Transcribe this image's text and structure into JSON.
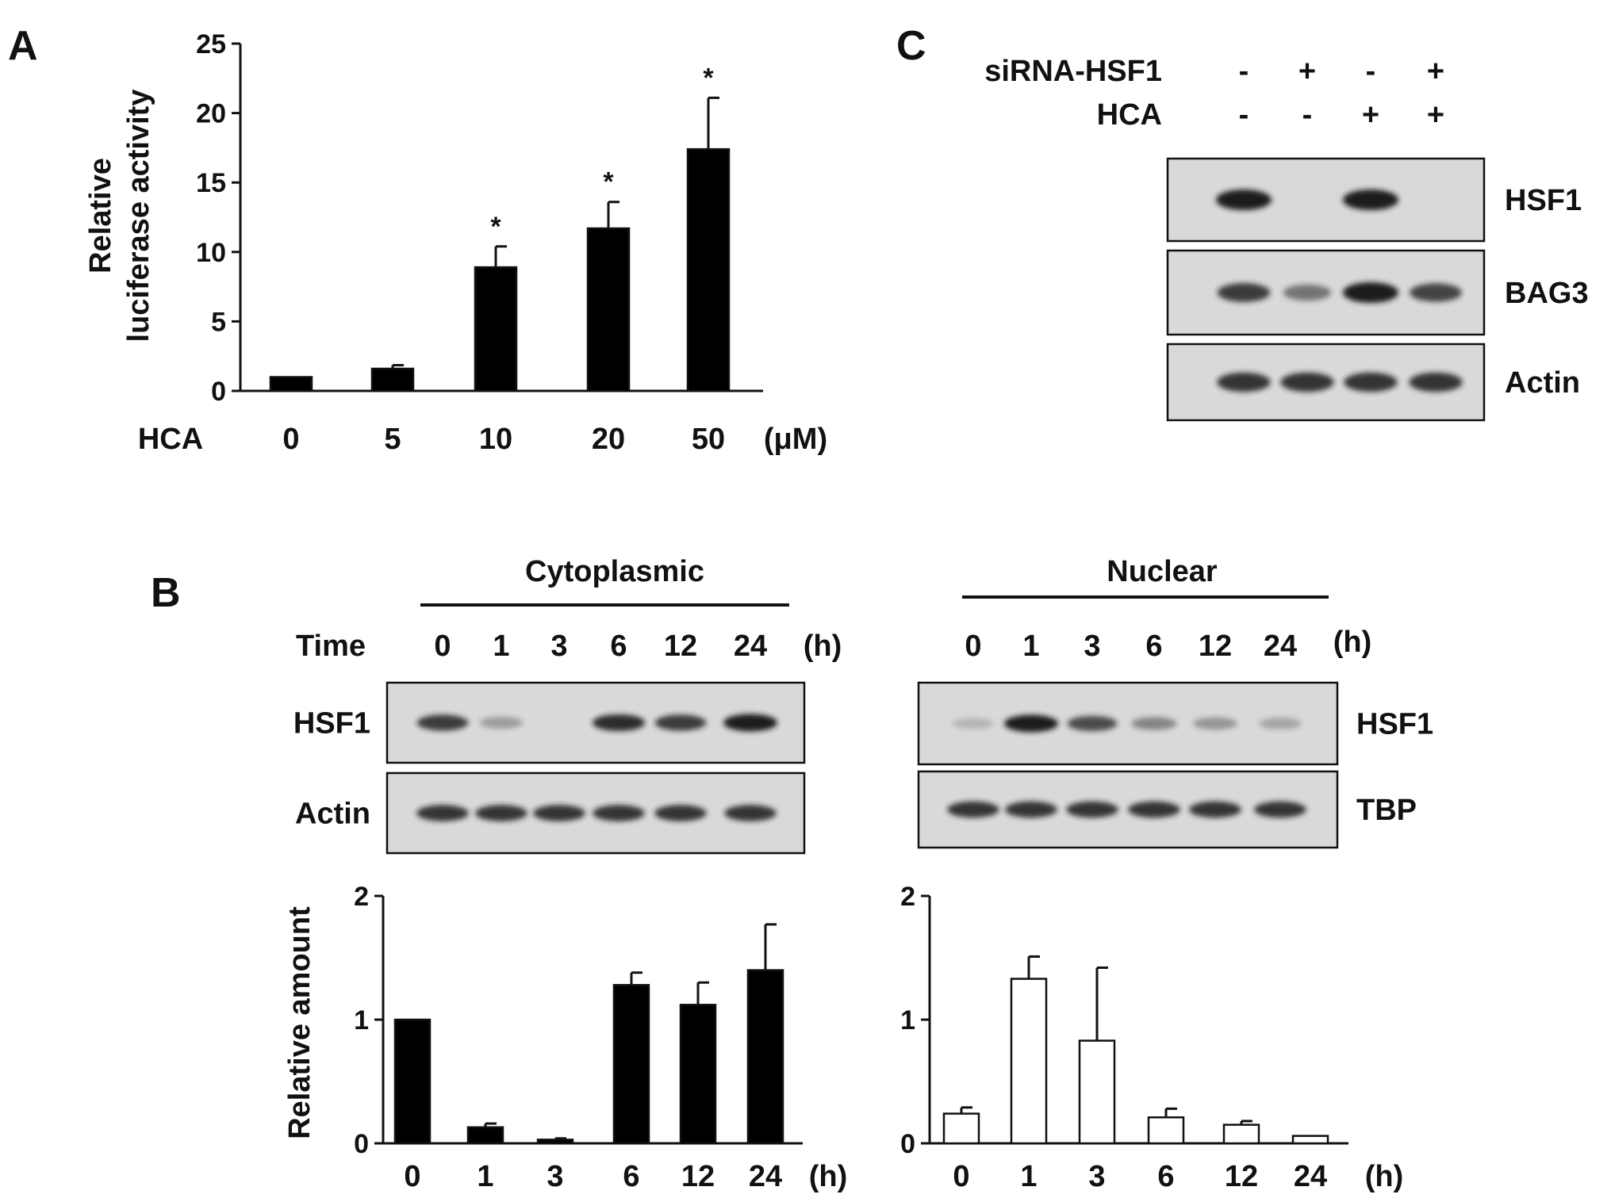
{
  "panel_labels": {
    "a": "A",
    "b": "B",
    "c": "C"
  },
  "chart_data": [
    {
      "id": "A",
      "type": "bar",
      "ylabel_line1": "Relative",
      "ylabel_line2": "luciferase activity",
      "x_row_label": "HCA",
      "x_unit": "(μM)",
      "categories": [
        "0",
        "5",
        "10",
        "20",
        "50"
      ],
      "values": [
        1.0,
        1.6,
        8.9,
        11.7,
        17.4
      ],
      "errors": [
        0,
        0.25,
        1.5,
        1.9,
        3.7
      ],
      "significance": [
        "",
        "",
        "*",
        "*",
        "*"
      ],
      "ylim": [
        0,
        25
      ],
      "yticks": [
        "0",
        "5",
        "10",
        "15",
        "20",
        "25"
      ],
      "bar_color": "#000000"
    },
    {
      "id": "B-cytoplasmic",
      "type": "bar",
      "ylabel": "Relative amount",
      "x_unit": "(h)",
      "categories": [
        "0",
        "1",
        "3",
        "6",
        "12",
        "24"
      ],
      "values": [
        1.0,
        0.13,
        0.03,
        1.28,
        1.12,
        1.4
      ],
      "errors": [
        0,
        0.03,
        0.01,
        0.1,
        0.18,
        0.37
      ],
      "ylim": [
        0,
        2
      ],
      "yticks": [
        "0",
        "1",
        "2"
      ],
      "bar_color": "#000000"
    },
    {
      "id": "B-nuclear",
      "type": "bar",
      "x_unit": "(h)",
      "categories": [
        "0",
        "1",
        "3",
        "6",
        "12",
        "24"
      ],
      "values": [
        0.24,
        1.33,
        0.83,
        0.21,
        0.15,
        0.06
      ],
      "errors": [
        0.05,
        0.18,
        0.59,
        0.07,
        0.03,
        0
      ],
      "ylim": [
        0,
        2
      ],
      "yticks": [
        "0",
        "1",
        "2"
      ],
      "bar_color": "#ffffff"
    }
  ],
  "panel_b": {
    "cyto": {
      "title": "Cytoplasmic",
      "time_label": "Time",
      "time_unit": "(h)",
      "lanes": [
        "0",
        "1",
        "3",
        "6",
        "12",
        "24"
      ],
      "blots": [
        {
          "label": "HSF1",
          "band_intensity": [
            0.8,
            0.2,
            0.0,
            0.9,
            0.8,
            1.0
          ]
        },
        {
          "label": "Actin",
          "band_intensity": [
            0.85,
            0.85,
            0.85,
            0.85,
            0.85,
            0.85
          ]
        }
      ]
    },
    "nuclear": {
      "title": "Nuclear",
      "time_unit": "(h)",
      "lanes": [
        "0",
        "1",
        "3",
        "6",
        "12",
        "24"
      ],
      "blots": [
        {
          "label": "HSF1",
          "band_intensity": [
            0.05,
            1.0,
            0.7,
            0.35,
            0.25,
            0.15
          ]
        },
        {
          "label": "TBP",
          "band_intensity": [
            0.85,
            0.85,
            0.85,
            0.85,
            0.85,
            0.85
          ]
        }
      ]
    }
  },
  "panel_c": {
    "conditions": [
      {
        "label": "siRNA-HSF1",
        "signs": [
          "-",
          "+",
          "-",
          "+"
        ]
      },
      {
        "label": "HCA",
        "signs": [
          "-",
          "-",
          "+",
          "+"
        ]
      }
    ],
    "blots": [
      {
        "label": "HSF1",
        "band_intensity": [
          1.0,
          0.0,
          1.0,
          0.0
        ]
      },
      {
        "label": "BAG3",
        "band_intensity": [
          0.8,
          0.45,
          1.0,
          0.75
        ]
      },
      {
        "label": "Actin",
        "band_intensity": [
          0.85,
          0.85,
          0.85,
          0.85
        ]
      }
    ]
  }
}
